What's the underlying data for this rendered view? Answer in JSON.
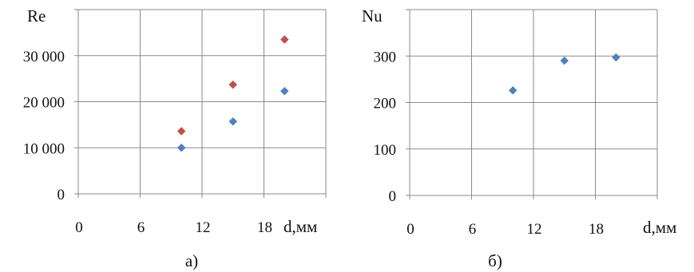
{
  "chart_data": [
    {
      "type": "scatter",
      "caption": "а)",
      "ylabel": "Re",
      "xlabel": "d,мм",
      "xlim": [
        0,
        24
      ],
      "ylim": [
        0,
        40000
      ],
      "xticks": [
        0,
        6,
        12,
        18
      ],
      "xtick_labels": [
        "0",
        "6",
        "12",
        "18"
      ],
      "yticks": [
        0,
        10000,
        20000,
        30000
      ],
      "ytick_labels": [
        "0",
        "10 000",
        "20 000",
        "30 000"
      ],
      "grid": true,
      "series": [
        {
          "color": "#4f81bd",
          "x": [
            10,
            15,
            20
          ],
          "y": [
            10000,
            15700,
            22300
          ]
        },
        {
          "color": "#c0504d",
          "x": [
            10,
            15,
            20
          ],
          "y": [
            13600,
            23700,
            33500
          ]
        }
      ]
    },
    {
      "type": "scatter",
      "caption": "б)",
      "ylabel": "Nu",
      "xlabel": "d,мм",
      "xlim": [
        0,
        24
      ],
      "ylim": [
        0,
        400
      ],
      "xticks": [
        0,
        6,
        12,
        18
      ],
      "xtick_labels": [
        "0",
        "6",
        "12",
        "18"
      ],
      "yticks": [
        0,
        100,
        200,
        300
      ],
      "ytick_labels": [
        "0",
        "100",
        "200",
        "300"
      ],
      "grid": true,
      "series": [
        {
          "color": "#4f81bd",
          "x": [
            10,
            15,
            20
          ],
          "y": [
            226,
            290,
            297
          ]
        }
      ]
    }
  ]
}
